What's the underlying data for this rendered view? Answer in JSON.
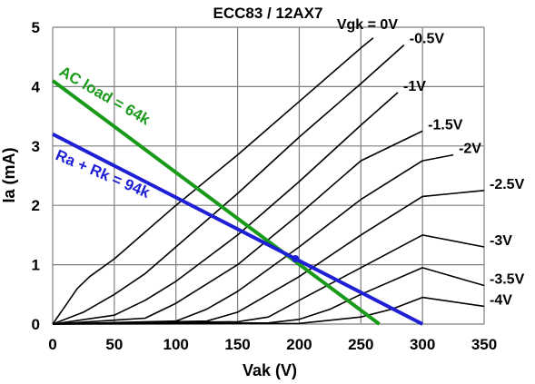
{
  "chart_data": {
    "type": "line",
    "title": "ECC83 / 12AX7",
    "xlabel": "Vak (V)",
    "ylabel": "Ia (mA)",
    "xlim": [
      0,
      350
    ],
    "ylim": [
      0,
      5
    ],
    "xticks": [
      "0",
      "50",
      "100",
      "150",
      "200",
      "250",
      "300",
      "350"
    ],
    "yticks": [
      "0",
      "1",
      "2",
      "3",
      "4",
      "5"
    ],
    "grid": true,
    "curves": [
      {
        "label": "Vgk = 0V",
        "points": [
          [
            0,
            0
          ],
          [
            10,
            0.3
          ],
          [
            20,
            0.6
          ],
          [
            30,
            0.8
          ],
          [
            50,
            1.1
          ],
          [
            75,
            1.55
          ],
          [
            100,
            2.0
          ],
          [
            150,
            2.85
          ],
          [
            200,
            3.75
          ],
          [
            250,
            4.65
          ],
          [
            260,
            4.82
          ]
        ]
      },
      {
        "label": "-0.5V",
        "points": [
          [
            0,
            0
          ],
          [
            25,
            0.2
          ],
          [
            50,
            0.5
          ],
          [
            75,
            0.85
          ],
          [
            100,
            1.3
          ],
          [
            150,
            2.2
          ],
          [
            200,
            3.15
          ],
          [
            250,
            4.05
          ],
          [
            285,
            4.7
          ]
        ]
      },
      {
        "label": "-1V",
        "points": [
          [
            0,
            0
          ],
          [
            50,
            0.15
          ],
          [
            75,
            0.4
          ],
          [
            100,
            0.72
          ],
          [
            150,
            1.5
          ],
          [
            200,
            2.4
          ],
          [
            250,
            3.35
          ],
          [
            280,
            3.9
          ]
        ]
      },
      {
        "label": "-1.5V",
        "points": [
          [
            0,
            0
          ],
          [
            75,
            0.1
          ],
          [
            100,
            0.35
          ],
          [
            150,
            1.0
          ],
          [
            200,
            1.85
          ],
          [
            250,
            2.75
          ],
          [
            300,
            3.25
          ]
        ]
      },
      {
        "label": "-2V",
        "points": [
          [
            0,
            0
          ],
          [
            100,
            0.05
          ],
          [
            125,
            0.25
          ],
          [
            150,
            0.55
          ],
          [
            200,
            1.3
          ],
          [
            250,
            2.1
          ],
          [
            300,
            2.75
          ],
          [
            325,
            2.85
          ]
        ]
      },
      {
        "label": "-2.5V",
        "points": [
          [
            0,
            0
          ],
          [
            125,
            0.05
          ],
          [
            150,
            0.2
          ],
          [
            200,
            0.8
          ],
          [
            250,
            1.5
          ],
          [
            300,
            2.15
          ],
          [
            350,
            2.25
          ]
        ]
      },
      {
        "label": "-3V",
        "points": [
          [
            0,
            0
          ],
          [
            150,
            0.04
          ],
          [
            175,
            0.12
          ],
          [
            200,
            0.4
          ],
          [
            250,
            0.95
          ],
          [
            300,
            1.5
          ],
          [
            350,
            1.3
          ]
        ]
      },
      {
        "label": "-3.5V",
        "points": [
          [
            0,
            0
          ],
          [
            175,
            0.02
          ],
          [
            200,
            0.08
          ],
          [
            225,
            0.25
          ],
          [
            250,
            0.5
          ],
          [
            300,
            0.95
          ],
          [
            350,
            0.65
          ]
        ]
      },
      {
        "label": "-4V",
        "points": [
          [
            0,
            0
          ],
          [
            200,
            0.01
          ],
          [
            250,
            0.12
          ],
          [
            275,
            0.25
          ],
          [
            300,
            0.45
          ],
          [
            350,
            0.3
          ]
        ]
      }
    ],
    "load_lines": [
      {
        "label": "AC load = 64k",
        "color": "#1a9a1a",
        "points": [
          [
            0,
            4.1
          ],
          [
            265,
            0.0
          ]
        ]
      },
      {
        "label": "Ra + Rk = 94k",
        "color": "#1f1fd6",
        "points": [
          [
            0,
            3.2
          ],
          [
            300,
            0.0
          ]
        ]
      }
    ],
    "operating_point": {
      "x": 197,
      "y": 1.1
    },
    "colors": {
      "grid": "#7f7f7f",
      "curve": "#000000",
      "ac_load": "#1a9a1a",
      "dc_load": "#1f1fd6",
      "op_point": "#1f1fd6"
    }
  }
}
